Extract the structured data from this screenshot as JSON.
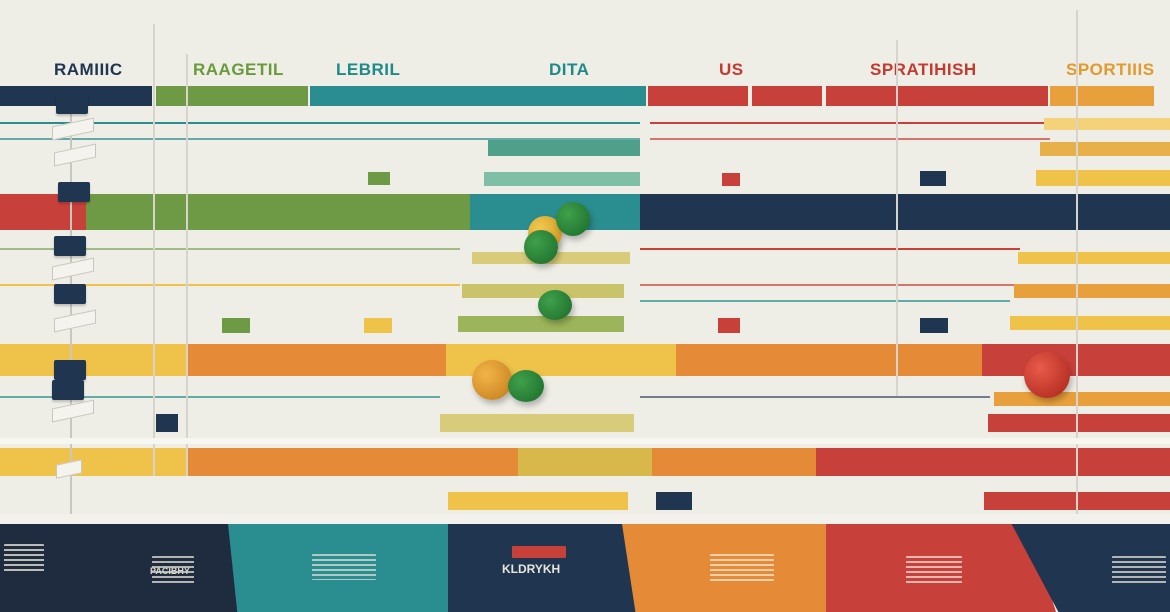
{
  "headers": [
    {
      "label": "RAMIIIC",
      "color": "#1f3550"
    },
    {
      "label": "RAAGETIL",
      "color": "#6a9a3a"
    },
    {
      "label": "LEBRIL",
      "color": "#1e8a8a"
    },
    {
      "label": "DITA",
      "color": "#1e8a8a"
    },
    {
      "label": "US",
      "color": "#c43a30"
    },
    {
      "label": "SPRATIHISH",
      "color": "#c43a30"
    },
    {
      "label": "SPORTIIIS",
      "color": "#e29a2e"
    }
  ],
  "footer_labels": [
    {
      "lines": [
        "PACIBHY"
      ],
      "color": "#d8d5cc"
    },
    {
      "lines": [
        "KLDRYKH"
      ],
      "color": "#e8e4da"
    }
  ],
  "colors": {
    "navy": "#1f3550",
    "green": "#6e9a46",
    "teal": "#2a8d8f",
    "yellow": "#efc24a",
    "orange": "#e58a36",
    "red": "#c8403a",
    "background": "#eeede6"
  }
}
